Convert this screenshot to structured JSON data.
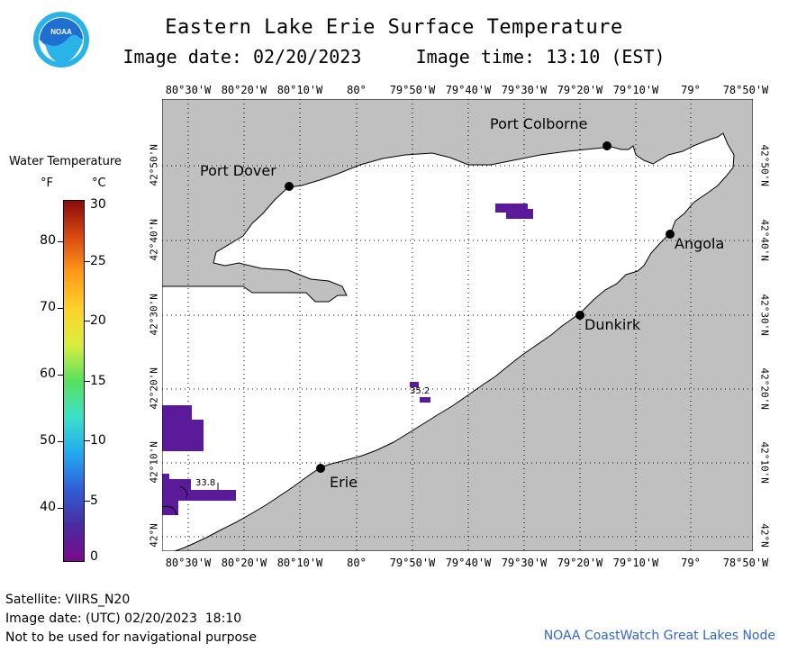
{
  "header": {
    "title": "Eastern Lake Erie Surface Temperature",
    "subtitle": "Image date: 02/20/2023     Image time: 13:10 (EST)"
  },
  "logo": {
    "text": "NOAA",
    "icon": "noaa-logo-icon",
    "colors": {
      "ring": "#ffffff",
      "sky": "#1e6fd1",
      "bird": "#ffffff",
      "outer": "#29b3e8"
    }
  },
  "map": {
    "land_color": "#c0c0c0",
    "water_color": "#ffffff",
    "anomaly_color": "#5a1a9a",
    "lon_labels": [
      "80°30'W",
      "80°20'W",
      "80°10'W",
      "80°",
      "79°50'W",
      "79°40'W",
      "79°30'W",
      "79°20'W",
      "79°10'W",
      "79°",
      "78°50'W"
    ],
    "lat_labels": [
      "42°N",
      "42°10'N",
      "42°20'N",
      "42°30'N",
      "42°40'N",
      "42°50'N"
    ],
    "cities": [
      {
        "name": "Port Colborne"
      },
      {
        "name": "Port Dover"
      },
      {
        "name": "Angola"
      },
      {
        "name": "Dunkirk"
      },
      {
        "name": "Erie"
      }
    ],
    "temp_labels": [
      {
        "value": "35.2"
      },
      {
        "value": "33.8"
      }
    ]
  },
  "legend": {
    "title": "Water Temperature",
    "unit_f": "°F",
    "unit_c": "°C",
    "f_ticks": [
      "80",
      "70",
      "60",
      "50",
      "40"
    ],
    "c_ticks": [
      "30",
      "25",
      "20",
      "15",
      "10",
      "5",
      "0"
    ],
    "range_c": [
      0,
      30
    ]
  },
  "footer": {
    "satellite": "Satellite: VIIRS_N20",
    "utc": "Image date: (UTC) 02/20/2023  18:10",
    "disclaimer": "Not to be used for navigational purpose",
    "credit": "NOAA CoastWatch Great Lakes Node"
  }
}
